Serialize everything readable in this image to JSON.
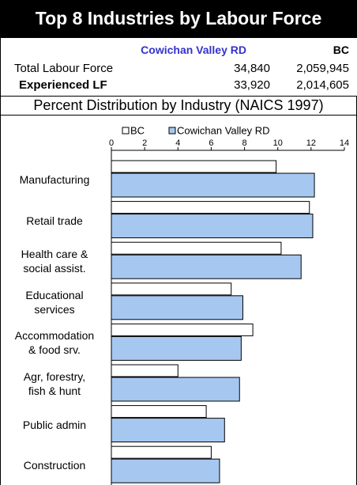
{
  "header": {
    "title": "Top 8 Industries by Labour Force"
  },
  "table": {
    "columns": [
      "Cowichan Valley RD",
      "BC"
    ],
    "rows": [
      [
        "Total Labour Force",
        "34,840",
        "2,059,945"
      ],
      [
        "Experienced LF",
        "33,920",
        "2,014,605"
      ]
    ]
  },
  "chart_data": {
    "type": "bar",
    "orientation": "horizontal",
    "title": "Percent Distribution by Industry (NAICS 1997)",
    "categories": [
      "Manufacturing",
      "Retail trade",
      "Health care &\nsocial assist.",
      "Educational\nservices",
      "Accommodation\n& food srv.",
      "Agr, forestry,\nfish & hunt",
      "Public admin",
      "Construction"
    ],
    "series": [
      {
        "name": "BC",
        "color": "#ffffff",
        "values": [
          9.9,
          11.9,
          10.2,
          7.2,
          8.5,
          4.0,
          5.7,
          6.0
        ]
      },
      {
        "name": "Cowichan Valley RD",
        "color": "#a6c8f0",
        "values": [
          12.2,
          12.1,
          11.4,
          7.9,
          7.8,
          7.7,
          6.8,
          6.5
        ]
      }
    ],
    "xlim": [
      0,
      14
    ],
    "xticks": [
      0,
      2,
      4,
      6,
      8,
      10,
      12,
      14
    ],
    "legend": "top"
  }
}
